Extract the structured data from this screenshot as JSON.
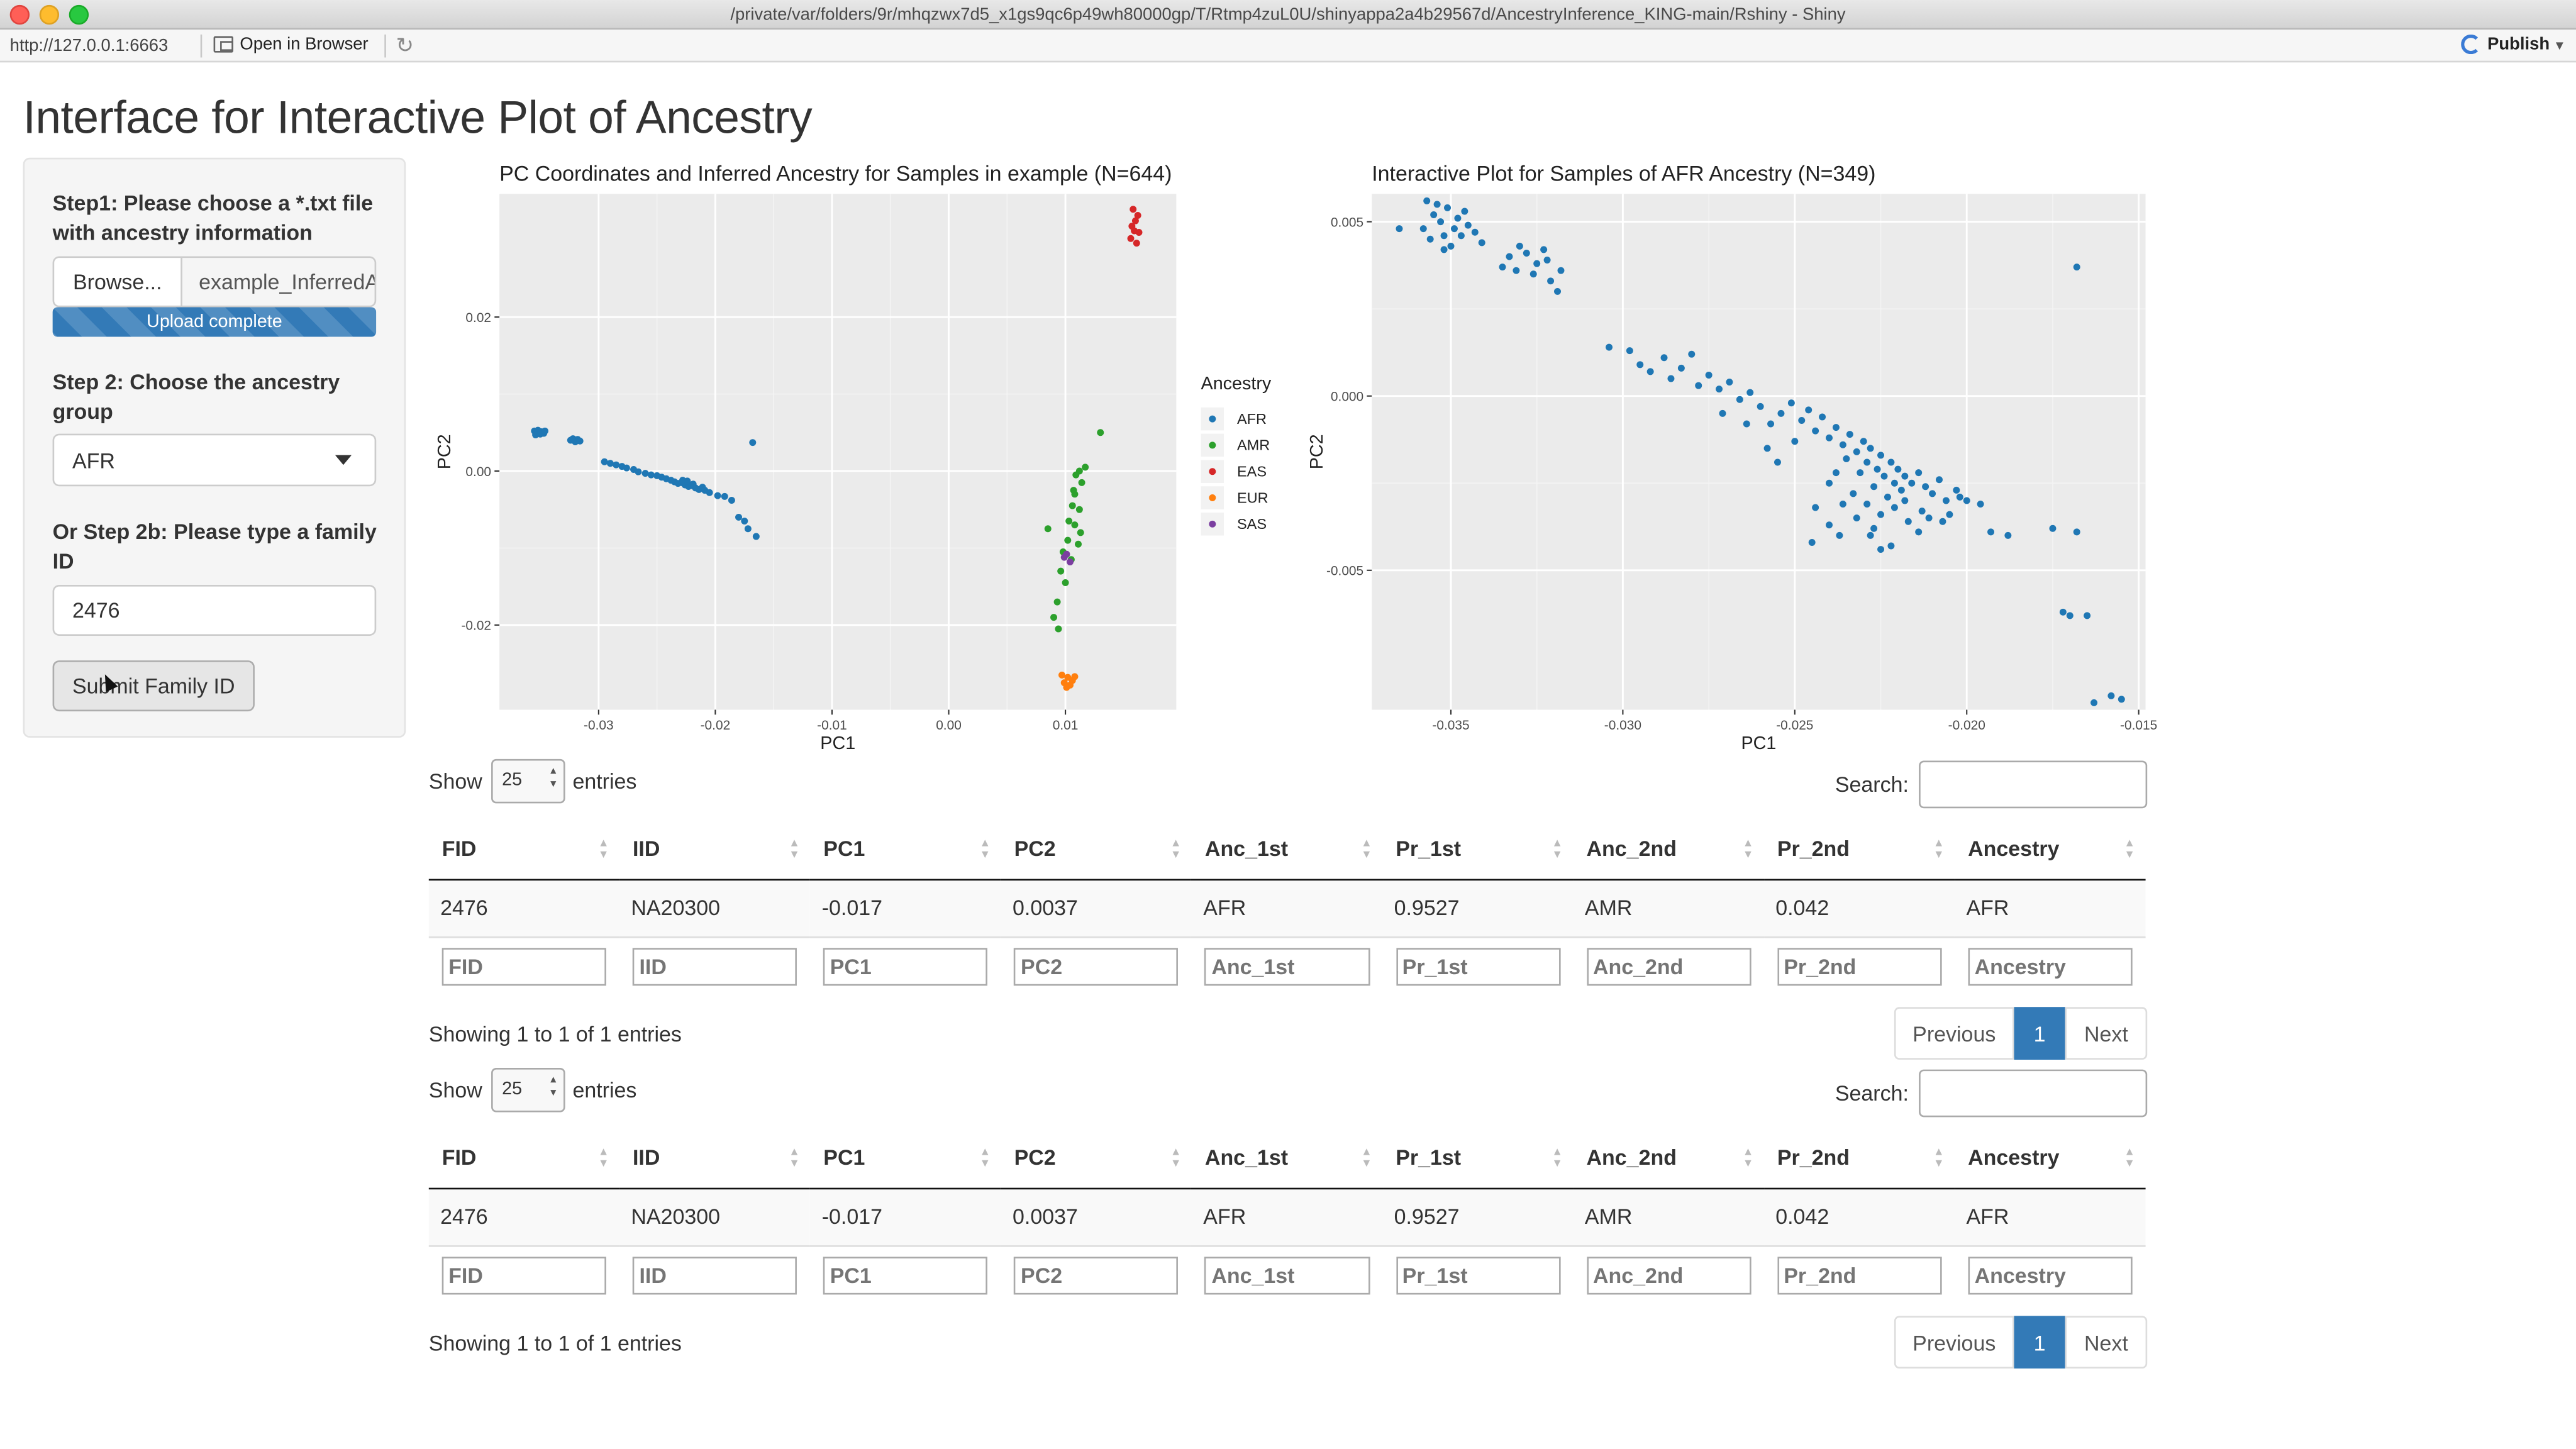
{
  "window": {
    "title": "/private/var/folders/9r/mhqzwx7d5_x1gs9qc6p49wh80000gp/T/Rtmp4zuL0U/shinyappa2a4b29567d/AncestryInference_KING-main/Rshiny - Shiny",
    "url": "http://127.0.0.1:6663",
    "open_in_browser": "Open in Browser",
    "publish": "Publish"
  },
  "page_title": "Interface for Interactive Plot of Ancestry",
  "sidebar": {
    "step1_label": "Step1: Please choose a *.txt file with ancestry information",
    "browse_label": "Browse...",
    "file_name": "example_InferredAncestry.txt",
    "upload_status": "Upload complete",
    "step2_label": "Step 2: Choose the ancestry group",
    "ancestry_selected": "AFR",
    "step2b_label": "Or Step 2b: Please type a family ID",
    "family_id": "2476",
    "submit_label": "Submit Family ID"
  },
  "colors": {
    "AFR": "#1f77b4",
    "AMR": "#2ca02c",
    "EAS": "#d62728",
    "EUR": "#ff7f0e",
    "SAS": "#7b3fa0",
    "panel_bg": "#ebebeb",
    "primary": "#337ab7"
  },
  "chart_data": [
    {
      "type": "scatter",
      "title": "PC Coordinates and Inferred Ancestry for Samples in example (N=644)",
      "xlabel": "PC1",
      "ylabel": "PC2",
      "xlim": [
        -0.0385,
        0.0195
      ],
      "ylim": [
        -0.031,
        0.036
      ],
      "xticks": [
        -0.03,
        -0.02,
        -0.01,
        0.0,
        0.01
      ],
      "xtick_labels": [
        "-0.03",
        "-0.02",
        "-0.01",
        "0.00",
        "0.01"
      ],
      "yticks": [
        -0.02,
        0.0,
        0.02
      ],
      "ytick_labels": [
        "-0.02",
        "0.00",
        "0.02"
      ],
      "legend_title": "Ancestry",
      "legend_position": "right",
      "legend": [
        "AFR",
        "AMR",
        "EAS",
        "EUR",
        "SAS"
      ],
      "series": [
        {
          "name": "AFR",
          "points": [
            [
              -0.0355,
              0.0052
            ],
            [
              -0.0352,
              0.0053
            ],
            [
              -0.0349,
              0.0051
            ],
            [
              -0.0347,
              0.0049
            ],
            [
              -0.0354,
              0.0047
            ],
            [
              -0.035,
              0.0048
            ],
            [
              -0.0346,
              0.0052
            ],
            [
              -0.0322,
              0.0042
            ],
            [
              -0.0318,
              0.0041
            ],
            [
              -0.032,
              0.0038
            ],
            [
              -0.0324,
              0.004
            ],
            [
              -0.0316,
              0.0039
            ],
            [
              -0.0295,
              0.0012
            ],
            [
              -0.029,
              0.001
            ],
            [
              -0.0285,
              0.0008
            ],
            [
              -0.028,
              0.0006
            ],
            [
              -0.0276,
              0.0004
            ],
            [
              -0.027,
              0.0002
            ],
            [
              -0.0266,
              -0.0001
            ],
            [
              -0.026,
              -0.0003
            ],
            [
              -0.0255,
              -0.0005
            ],
            [
              -0.025,
              -0.0006
            ],
            [
              -0.0246,
              -0.0008
            ],
            [
              -0.0242,
              -0.001
            ],
            [
              -0.0238,
              -0.0012
            ],
            [
              -0.0235,
              -0.0014
            ],
            [
              -0.0232,
              -0.0016
            ],
            [
              -0.0229,
              -0.0015
            ],
            [
              -0.0226,
              -0.0018
            ],
            [
              -0.0223,
              -0.002
            ],
            [
              -0.022,
              -0.0019
            ],
            [
              -0.0217,
              -0.0022
            ],
            [
              -0.0214,
              -0.0024
            ],
            [
              -0.0211,
              -0.0021
            ],
            [
              -0.0228,
              -0.0012
            ],
            [
              -0.0224,
              -0.0013
            ],
            [
              -0.0219,
              -0.0017
            ],
            [
              -0.0209,
              -0.0025
            ],
            [
              -0.0205,
              -0.0028
            ],
            [
              -0.0198,
              -0.0032
            ],
            [
              -0.0192,
              -0.0033
            ],
            [
              -0.0186,
              -0.0038
            ],
            [
              -0.018,
              -0.006
            ],
            [
              -0.0175,
              -0.0065
            ],
            [
              -0.0172,
              -0.0075
            ],
            [
              -0.0165,
              -0.0085
            ],
            [
              -0.0168,
              0.0037
            ]
          ]
        },
        {
          "name": "AMR",
          "points": [
            [
              0.013,
              0.005
            ],
            [
              0.0117,
              0.0005
            ],
            [
              0.0112,
              0.0
            ],
            [
              0.0109,
              -0.0005
            ],
            [
              0.0114,
              -0.0015
            ],
            [
              0.0108,
              -0.003
            ],
            [
              0.0106,
              -0.0045
            ],
            [
              0.0112,
              -0.005
            ],
            [
              0.0103,
              -0.0065
            ],
            [
              0.0108,
              -0.007
            ],
            [
              0.0113,
              -0.008
            ],
            [
              0.0102,
              -0.009
            ],
            [
              0.0111,
              -0.0095
            ],
            [
              0.0098,
              -0.0105
            ],
            [
              0.0105,
              -0.0115
            ],
            [
              0.0096,
              -0.013
            ],
            [
              0.01,
              -0.0145
            ],
            [
              0.0093,
              -0.017
            ],
            [
              0.009,
              -0.019
            ],
            [
              0.0094,
              -0.0205
            ],
            [
              0.0085,
              -0.0075
            ],
            [
              0.0107,
              -0.0025
            ]
          ]
        },
        {
          "name": "EAS",
          "points": [
            [
              0.0158,
              0.034
            ],
            [
              0.0162,
              0.0332
            ],
            [
              0.016,
              0.0325
            ],
            [
              0.0157,
              0.0318
            ],
            [
              0.0163,
              0.031
            ],
            [
              0.0156,
              0.0302
            ],
            [
              0.0161,
              0.0296
            ],
            [
              0.0159,
              0.0312
            ]
          ]
        },
        {
          "name": "EUR",
          "points": [
            [
              0.0097,
              -0.0265
            ],
            [
              0.0102,
              -0.0268
            ],
            [
              0.0106,
              -0.0272
            ],
            [
              0.0099,
              -0.0275
            ],
            [
              0.0104,
              -0.0278
            ],
            [
              0.0108,
              -0.0267
            ],
            [
              0.0101,
              -0.0281
            ]
          ]
        },
        {
          "name": "SAS",
          "points": [
            [
              0.0099,
              -0.0112
            ],
            [
              0.0104,
              -0.0118
            ],
            [
              0.0101,
              -0.0108
            ]
          ]
        }
      ]
    },
    {
      "type": "scatter",
      "title": "Interactive Plot for Samples of AFR Ancestry (N=349)",
      "xlabel": "PC1",
      "ylabel": "PC2",
      "xlim": [
        -0.0373,
        -0.0148
      ],
      "ylim": [
        -0.009,
        0.0058
      ],
      "xticks": [
        -0.035,
        -0.03,
        -0.025,
        -0.02,
        -0.015
      ],
      "xtick_labels": [
        "-0.035",
        "-0.030",
        "-0.025",
        "-0.020",
        "-0.015"
      ],
      "yticks": [
        -0.005,
        0.0,
        0.005
      ],
      "ytick_labels": [
        "-0.005",
        "0.000",
        "0.005"
      ],
      "series": [
        {
          "name": "AFR",
          "points": [
            [
              -0.0358,
              0.0048
            ],
            [
              -0.0355,
              0.0052
            ],
            [
              -0.0353,
              0.005
            ],
            [
              -0.0351,
              0.0054
            ],
            [
              -0.0349,
              0.0048
            ],
            [
              -0.0352,
              0.0046
            ],
            [
              -0.0356,
              0.0045
            ],
            [
              -0.0348,
              0.0051
            ],
            [
              -0.0347,
              0.0046
            ],
            [
              -0.0354,
              0.0055
            ],
            [
              -0.035,
              0.0043
            ],
            [
              -0.0345,
              0.0049
            ],
            [
              -0.0343,
              0.0047
            ],
            [
              -0.0341,
              0.0044
            ],
            [
              -0.0365,
              0.0048
            ],
            [
              -0.0357,
              0.0056
            ],
            [
              -0.0352,
              0.0042
            ],
            [
              -0.0346,
              0.0053
            ],
            [
              -0.0333,
              0.004
            ],
            [
              -0.033,
              0.0043
            ],
            [
              -0.0328,
              0.0041
            ],
            [
              -0.0325,
              0.0038
            ],
            [
              -0.0322,
              0.0039
            ],
            [
              -0.0326,
              0.0035
            ],
            [
              -0.0321,
              0.0033
            ],
            [
              -0.0335,
              0.0037
            ],
            [
              -0.0331,
              0.0036
            ],
            [
              -0.0318,
              0.0036
            ],
            [
              -0.0323,
              0.0042
            ],
            [
              -0.0319,
              0.003
            ],
            [
              -0.0304,
              0.0014
            ],
            [
              -0.0298,
              0.0013
            ],
            [
              -0.0295,
              0.0009
            ],
            [
              -0.0292,
              0.0007
            ],
            [
              -0.0288,
              0.0011
            ],
            [
              -0.0286,
              0.0005
            ],
            [
              -0.0283,
              0.0008
            ],
            [
              -0.028,
              0.0012
            ],
            [
              -0.0278,
              0.0003
            ],
            [
              -0.0275,
              0.0006
            ],
            [
              -0.0272,
              0.0002
            ],
            [
              -0.0269,
              0.0004
            ],
            [
              -0.0266,
              -0.0001
            ],
            [
              -0.0263,
              0.0001
            ],
            [
              -0.026,
              -0.0003
            ],
            [
              -0.0257,
              -0.0008
            ],
            [
              -0.0254,
              -0.0005
            ],
            [
              -0.0251,
              -0.0002
            ],
            [
              -0.0248,
              -0.0007
            ],
            [
              -0.0246,
              -0.0004
            ],
            [
              -0.0244,
              -0.001
            ],
            [
              -0.0242,
              -0.0006
            ],
            [
              -0.024,
              -0.0012
            ],
            [
              -0.0238,
              -0.0009
            ],
            [
              -0.0236,
              -0.0014
            ],
            [
              -0.0234,
              -0.0011
            ],
            [
              -0.0232,
              -0.0016
            ],
            [
              -0.023,
              -0.0013
            ],
            [
              -0.0229,
              -0.0019
            ],
            [
              -0.0228,
              -0.0015
            ],
            [
              -0.0226,
              -0.0021
            ],
            [
              -0.0225,
              -0.0017
            ],
            [
              -0.0224,
              -0.0023
            ],
            [
              -0.0222,
              -0.0019
            ],
            [
              -0.0221,
              -0.0025
            ],
            [
              -0.022,
              -0.0021
            ],
            [
              -0.0219,
              -0.0027
            ],
            [
              -0.0218,
              -0.0023
            ],
            [
              -0.0216,
              -0.0025
            ],
            [
              -0.0214,
              -0.0022
            ],
            [
              -0.0212,
              -0.0026
            ],
            [
              -0.021,
              -0.0028
            ],
            [
              -0.0208,
              -0.0024
            ],
            [
              -0.0206,
              -0.003
            ],
            [
              -0.0203,
              -0.0027
            ],
            [
              -0.02,
              -0.003
            ],
            [
              -0.0235,
              -0.0018
            ],
            [
              -0.0231,
              -0.0022
            ],
            [
              -0.0227,
              -0.0026
            ],
            [
              -0.0223,
              -0.0029
            ],
            [
              -0.0238,
              -0.0022
            ],
            [
              -0.0233,
              -0.0028
            ],
            [
              -0.0229,
              -0.0031
            ],
            [
              -0.0225,
              -0.0034
            ],
            [
              -0.0221,
              -0.0032
            ],
            [
              -0.0217,
              -0.0036
            ],
            [
              -0.0213,
              -0.0033
            ],
            [
              -0.024,
              -0.0025
            ],
            [
              -0.0236,
              -0.0031
            ],
            [
              -0.0232,
              -0.0035
            ],
            [
              -0.0227,
              -0.0038
            ],
            [
              -0.0244,
              -0.0032
            ],
            [
              -0.0228,
              -0.004
            ],
            [
              -0.0222,
              -0.0043
            ],
            [
              -0.0214,
              -0.0039
            ],
            [
              -0.0211,
              -0.0035
            ],
            [
              -0.0205,
              -0.0034
            ],
            [
              -0.0196,
              -0.0031
            ],
            [
              -0.0193,
              -0.0039
            ],
            [
              -0.0188,
              -0.004
            ],
            [
              -0.0175,
              -0.0038
            ],
            [
              -0.0168,
              -0.0039
            ],
            [
              -0.0172,
              -0.0062
            ],
            [
              -0.0165,
              -0.0063
            ],
            [
              -0.0163,
              -0.0088
            ],
            [
              -0.0155,
              -0.0087
            ],
            [
              -0.017,
              -0.0063
            ],
            [
              -0.0168,
              0.0037
            ],
            [
              -0.0158,
              -0.0086
            ],
            [
              -0.0225,
              -0.0044
            ],
            [
              -0.024,
              -0.0037
            ],
            [
              -0.0245,
              -0.0042
            ],
            [
              -0.0237,
              -0.004
            ],
            [
              -0.0218,
              -0.003
            ],
            [
              -0.0202,
              -0.0029
            ],
            [
              -0.0207,
              -0.0036
            ],
            [
              -0.025,
              -0.0013
            ],
            [
              -0.0258,
              -0.0015
            ],
            [
              -0.0264,
              -0.0008
            ],
            [
              -0.0271,
              -0.0005
            ],
            [
              -0.0255,
              -0.0019
            ]
          ]
        }
      ]
    }
  ],
  "tables": [
    {
      "length": "25",
      "show_label": "Show",
      "entries_label": "entries",
      "search_label": "Search:",
      "columns": [
        "FID",
        "IID",
        "PC1",
        "PC2",
        "Anc_1st",
        "Pr_1st",
        "Anc_2nd",
        "Pr_2nd",
        "Ancestry"
      ],
      "rows": [
        [
          "2476",
          "NA20300",
          "-0.017",
          "0.0037",
          "AFR",
          "0.9527",
          "AMR",
          "0.042",
          "AFR"
        ]
      ],
      "info": "Showing 1 to 1 of 1 entries",
      "prev": "Previous",
      "page": "1",
      "next": "Next"
    },
    {
      "length": "25",
      "show_label": "Show",
      "entries_label": "entries",
      "search_label": "Search:",
      "columns": [
        "FID",
        "IID",
        "PC1",
        "PC2",
        "Anc_1st",
        "Pr_1st",
        "Anc_2nd",
        "Pr_2nd",
        "Ancestry"
      ],
      "rows": [
        [
          "2476",
          "NA20300",
          "-0.017",
          "0.0037",
          "AFR",
          "0.9527",
          "AMR",
          "0.042",
          "AFR"
        ]
      ],
      "info": "Showing 1 to 1 of 1 entries",
      "prev": "Previous",
      "page": "1",
      "next": "Next"
    }
  ]
}
